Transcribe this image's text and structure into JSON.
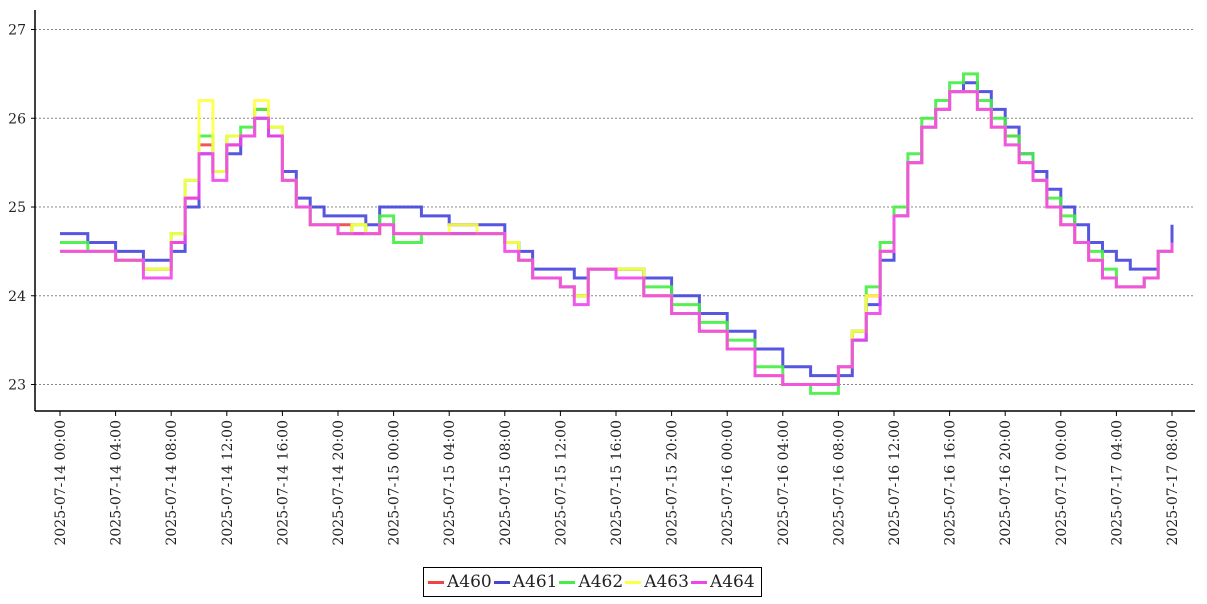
{
  "chart_data": {
    "type": "line",
    "title": "",
    "xlabel": "",
    "ylabel": "",
    "ylim": [
      22.7,
      27.2
    ],
    "xlim": [
      "2025-07-14 00:00",
      "2025-07-17 08:00"
    ],
    "yticks": [
      "23",
      "24",
      "25",
      "26",
      "27"
    ],
    "xticks": [
      "2025-07-14 00:00",
      "2025-07-14 04:00",
      "2025-07-14 08:00",
      "2025-07-14 12:00",
      "2025-07-14 16:00",
      "2025-07-14 20:00",
      "2025-07-15 00:00",
      "2025-07-15 04:00",
      "2025-07-15 08:00",
      "2025-07-15 12:00",
      "2025-07-15 16:00",
      "2025-07-15 20:00",
      "2025-07-16 00:00",
      "2025-07-16 04:00",
      "2025-07-16 08:00",
      "2025-07-16 12:00",
      "2025-07-16 16:00",
      "2025-07-16 20:00",
      "2025-07-17 00:00",
      "2025-07-17 04:00",
      "2025-07-17 08:00"
    ],
    "grid": "horizontal dotted",
    "legend": "bottom-center",
    "line_style": "step",
    "x": [
      "2025-07-14 00:00",
      "2025-07-14 02:00",
      "2025-07-14 04:00",
      "2025-07-14 06:00",
      "2025-07-14 08:00",
      "2025-07-14 09:00",
      "2025-07-14 10:00",
      "2025-07-14 11:00",
      "2025-07-14 12:00",
      "2025-07-14 13:00",
      "2025-07-14 14:00",
      "2025-07-14 15:00",
      "2025-07-14 16:00",
      "2025-07-14 17:00",
      "2025-07-14 18:00",
      "2025-07-14 19:00",
      "2025-07-14 20:00",
      "2025-07-14 21:00",
      "2025-07-14 22:00",
      "2025-07-14 23:00",
      "2025-07-15 00:00",
      "2025-07-15 02:00",
      "2025-07-15 04:00",
      "2025-07-15 06:00",
      "2025-07-15 08:00",
      "2025-07-15 09:00",
      "2025-07-15 10:00",
      "2025-07-15 12:00",
      "2025-07-15 13:00",
      "2025-07-15 14:00",
      "2025-07-15 16:00",
      "2025-07-15 18:00",
      "2025-07-15 20:00",
      "2025-07-15 22:00",
      "2025-07-16 00:00",
      "2025-07-16 02:00",
      "2025-07-16 04:00",
      "2025-07-16 06:00",
      "2025-07-16 08:00",
      "2025-07-16 09:00",
      "2025-07-16 10:00",
      "2025-07-16 11:00",
      "2025-07-16 12:00",
      "2025-07-16 13:00",
      "2025-07-16 14:00",
      "2025-07-16 15:00",
      "2025-07-16 16:00",
      "2025-07-16 17:00",
      "2025-07-16 18:00",
      "2025-07-16 19:00",
      "2025-07-16 20:00",
      "2025-07-16 21:00",
      "2025-07-16 22:00",
      "2025-07-16 23:00",
      "2025-07-17 00:00",
      "2025-07-17 01:00",
      "2025-07-17 02:00",
      "2025-07-17 03:00",
      "2025-07-17 04:00",
      "2025-07-17 05:00",
      "2025-07-17 06:00",
      "2025-07-17 07:00",
      "2025-07-17 08:00"
    ],
    "series": [
      {
        "name": "A460",
        "color": "#ee4444",
        "values": [
          24.5,
          24.5,
          24.4,
          24.3,
          24.6,
          25.1,
          25.7,
          25.4,
          25.7,
          25.8,
          26.1,
          25.8,
          25.3,
          25.0,
          24.8,
          24.8,
          24.8,
          24.7,
          24.7,
          24.8,
          24.7,
          24.7,
          24.7,
          24.7,
          24.6,
          24.4,
          24.2,
          24.1,
          24.0,
          24.3,
          24.3,
          24.0,
          23.8,
          23.6,
          23.4,
          23.1,
          23.0,
          23.0,
          23.2,
          23.6,
          24.0,
          24.5,
          24.9,
          25.5,
          25.9,
          26.1,
          26.3,
          26.3,
          26.1,
          25.9,
          25.8,
          25.5,
          25.3,
          25.0,
          24.8,
          24.6,
          24.4,
          24.2,
          24.1,
          24.1,
          24.2,
          24.5,
          24.6
        ]
      },
      {
        "name": "A461",
        "color": "#4444dd",
        "values": [
          24.7,
          24.6,
          24.5,
          24.4,
          24.5,
          25.0,
          25.6,
          25.4,
          25.6,
          25.8,
          26.0,
          25.8,
          25.4,
          25.1,
          25.0,
          24.9,
          24.9,
          24.9,
          24.8,
          25.0,
          25.0,
          24.9,
          24.8,
          24.8,
          24.6,
          24.5,
          24.3,
          24.3,
          24.2,
          24.3,
          24.3,
          24.2,
          24.0,
          23.8,
          23.6,
          23.4,
          23.2,
          23.1,
          23.1,
          23.5,
          23.9,
          24.4,
          24.9,
          25.5,
          25.9,
          26.1,
          26.3,
          26.4,
          26.3,
          26.1,
          25.9,
          25.6,
          25.4,
          25.2,
          25.0,
          24.8,
          24.6,
          24.5,
          24.4,
          24.3,
          24.3,
          24.5,
          24.8
        ]
      },
      {
        "name": "A462",
        "color": "#44ee44",
        "values": [
          24.6,
          24.5,
          24.4,
          24.3,
          24.7,
          25.3,
          25.8,
          25.4,
          25.8,
          25.9,
          26.1,
          25.9,
          25.3,
          25.0,
          24.8,
          24.8,
          24.7,
          24.8,
          24.7,
          24.9,
          24.6,
          24.7,
          24.7,
          24.7,
          24.6,
          24.4,
          24.2,
          24.1,
          24.0,
          24.3,
          24.3,
          24.1,
          23.9,
          23.7,
          23.5,
          23.2,
          23.0,
          22.9,
          23.2,
          23.6,
          24.1,
          24.6,
          25.0,
          25.6,
          26.0,
          26.2,
          26.4,
          26.5,
          26.2,
          26.0,
          25.8,
          25.6,
          25.3,
          25.1,
          24.9,
          24.6,
          24.5,
          24.3,
          24.1,
          24.1,
          24.2,
          24.5,
          24.6
        ]
      },
      {
        "name": "A463",
        "color": "#ffff44",
        "values": [
          24.5,
          24.5,
          24.4,
          24.3,
          24.7,
          25.3,
          26.2,
          25.4,
          25.8,
          25.8,
          26.2,
          25.9,
          25.3,
          25.0,
          24.8,
          24.8,
          24.7,
          24.8,
          24.7,
          24.8,
          24.7,
          24.7,
          24.8,
          24.7,
          24.6,
          24.4,
          24.2,
          24.1,
          24.0,
          24.3,
          24.3,
          24.0,
          23.8,
          23.6,
          23.4,
          23.1,
          23.0,
          23.0,
          23.2,
          23.6,
          24.0,
          24.5,
          24.9,
          25.5,
          25.9,
          26.1,
          26.3,
          26.3,
          26.1,
          25.9,
          25.7,
          25.5,
          25.3,
          25.0,
          24.8,
          24.6,
          24.4,
          24.2,
          24.1,
          24.1,
          24.2,
          24.5,
          24.6
        ]
      },
      {
        "name": "A464",
        "color": "#ee44ee",
        "values": [
          24.5,
          24.5,
          24.4,
          24.2,
          24.6,
          25.1,
          25.6,
          25.3,
          25.7,
          25.8,
          26.0,
          25.8,
          25.3,
          25.0,
          24.8,
          24.8,
          24.7,
          24.7,
          24.7,
          24.8,
          24.7,
          24.7,
          24.7,
          24.7,
          24.5,
          24.4,
          24.2,
          24.1,
          23.9,
          24.3,
          24.2,
          24.0,
          23.8,
          23.6,
          23.4,
          23.1,
          23.0,
          23.0,
          23.2,
          23.5,
          23.8,
          24.5,
          24.9,
          25.5,
          25.9,
          26.1,
          26.3,
          26.3,
          26.1,
          25.9,
          25.7,
          25.5,
          25.3,
          25.0,
          24.8,
          24.6,
          24.4,
          24.2,
          24.1,
          24.1,
          24.2,
          24.5,
          24.6
        ]
      }
    ]
  }
}
